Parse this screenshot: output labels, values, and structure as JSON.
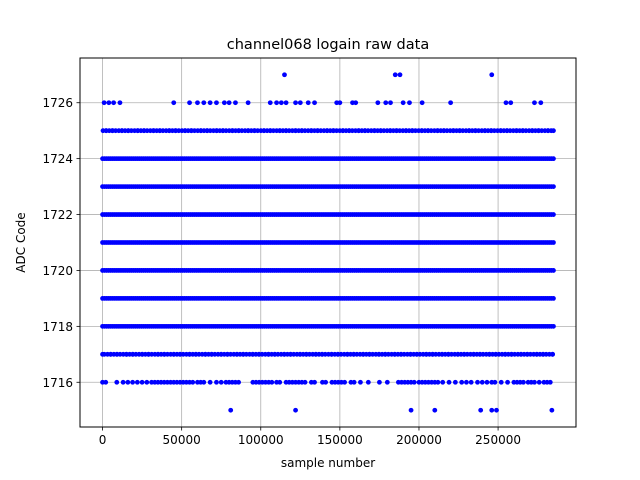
{
  "chart_data": {
    "type": "scatter",
    "title": "channel068 logain raw data",
    "xlabel": "sample number",
    "ylabel": "ADC Code",
    "xlim": [
      -14250,
      299250
    ],
    "ylim": [
      1714.4,
      1727.6
    ],
    "x_ticks": [
      0,
      50000,
      100000,
      150000,
      200000,
      250000
    ],
    "y_ticks": [
      1716,
      1718,
      1720,
      1722,
      1724,
      1726
    ],
    "grid": true,
    "marker_color": "#0000ff",
    "x_range": [
      0,
      285000
    ],
    "dense_levels": [
      1718,
      1719,
      1720,
      1721,
      1722,
      1723,
      1724
    ],
    "frequent_levels": [
      1717,
      1725
    ],
    "sparse_levels": [
      {
        "y": 1716,
        "x": [
          0,
          2000,
          9000,
          13000,
          16000,
          19000,
          22000,
          25000,
          28000,
          31000,
          33000,
          35000,
          37000,
          39000,
          41000,
          43000,
          45000,
          47000,
          49000,
          51000,
          53000,
          55000,
          57000,
          60000,
          62000,
          64000,
          68000,
          72000,
          75000,
          78000,
          80000,
          82000,
          84000,
          86000,
          95000,
          97000,
          99000,
          101000,
          103000,
          105000,
          107000,
          110000,
          112000,
          116000,
          118000,
          120000,
          122000,
          124000,
          126000,
          128000,
          132000,
          134000,
          139000,
          141000,
          145000,
          147000,
          149000,
          151000,
          153000,
          157000,
          159000,
          163000,
          168000,
          175000,
          180000,
          187000,
          189000,
          191000,
          193000,
          195000,
          197000,
          200000,
          202000,
          204000,
          206000,
          208000,
          210000,
          212000,
          215000,
          219000,
          223000,
          227000,
          230000,
          233000,
          237000,
          240000,
          243000,
          246000,
          248000,
          252000,
          256000,
          260000,
          262000,
          264000,
          266000,
          269000,
          271000,
          273000,
          276000,
          279000,
          281000,
          283000
        ]
      },
      {
        "y": 1715,
        "x": [
          81000,
          122000,
          195000,
          210000,
          239000,
          246000,
          249000,
          284000
        ]
      },
      {
        "y": 1726,
        "x": [
          1000,
          4000,
          7000,
          11000,
          45000,
          55000,
          60000,
          64000,
          68000,
          72000,
          77000,
          80000,
          84000,
          92000,
          106000,
          110000,
          113000,
          116000,
          122000,
          125000,
          130000,
          134000,
          148000,
          150000,
          158000,
          160000,
          174000,
          179000,
          182000,
          190000,
          194000,
          202000,
          220000,
          255000,
          258000,
          273000,
          277000
        ]
      },
      {
        "y": 1727,
        "x": [
          115000,
          185000,
          188000,
          246000
        ]
      }
    ]
  }
}
